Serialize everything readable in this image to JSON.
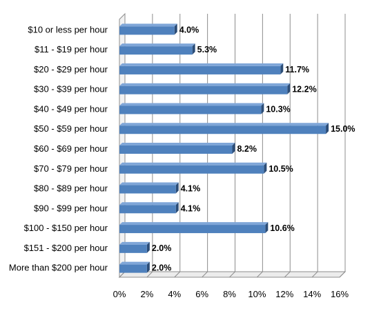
{
  "chart_data": {
    "type": "bar",
    "orientation": "horizontal",
    "style": "3d-clustered",
    "categories": [
      "$10 or less per hour",
      "$11 - $19 per hour",
      "$20 - $29 per hour",
      "$30 - $39 per hour",
      "$40 - $49 per hour",
      "$50 - $59 per hour",
      "$60 - $69 per hour",
      "$70 - $79 per hour",
      "$80 - $89 per hour",
      "$90 - $99 per hour",
      "$100 - $150 per hour",
      "$151 - $200 per hour",
      "More than $200 per hour"
    ],
    "values": [
      4.0,
      5.3,
      11.7,
      12.2,
      10.3,
      15.0,
      8.2,
      10.5,
      4.1,
      4.1,
      10.6,
      2.0,
      2.0
    ],
    "data_labels": [
      "4.0%",
      "5.3%",
      "11.7%",
      "12.2%",
      "10.3%",
      "15.0%",
      "8.2%",
      "10.5%",
      "4.1%",
      "4.1%",
      "10.6%",
      "2.0%",
      "2.0%"
    ],
    "x_ticks": [
      "0%",
      "2%",
      "4%",
      "6%",
      "8%",
      "10%",
      "12%",
      "14%",
      "16%"
    ],
    "xlim": [
      0,
      16
    ],
    "title": "",
    "xlabel": "",
    "ylabel": "",
    "grid": true,
    "legend": "none",
    "colors": {
      "bar_front": "#4f81bd",
      "bar_top": "#7fa6d8",
      "bar_side": "#2c4d77",
      "grid": "#8c8c8c",
      "wall": "#ffffff"
    }
  }
}
